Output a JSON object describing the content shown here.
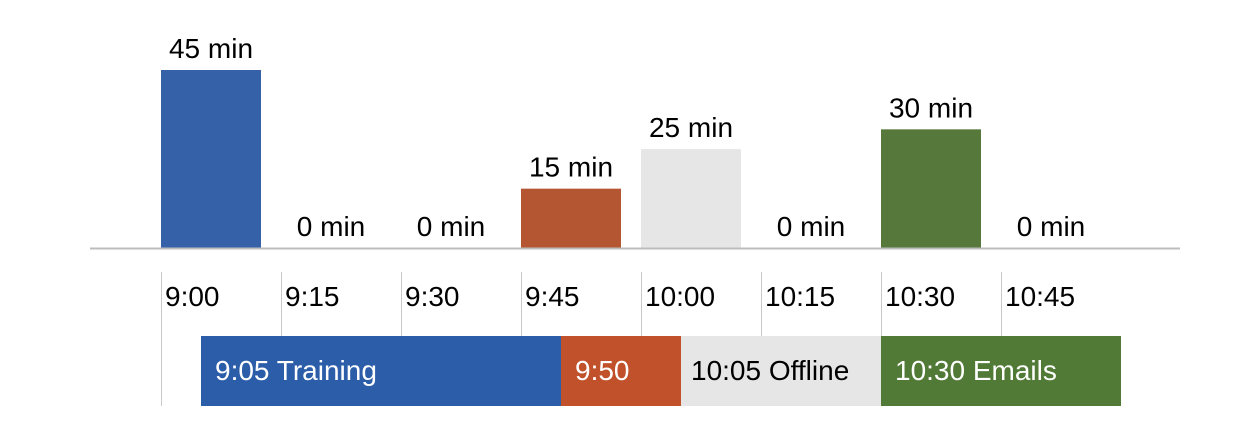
{
  "chart_data": {
    "type": "bar",
    "categories": [
      "9:00",
      "9:15",
      "9:30",
      "9:45",
      "10:00",
      "10:15",
      "10:30",
      "10:45"
    ],
    "values": [
      45,
      0,
      0,
      15,
      25,
      0,
      30,
      0
    ],
    "value_labels": [
      "45 min",
      "0 min",
      "0 min",
      "15 min",
      "25 min",
      "0 min",
      "30 min",
      "0 min"
    ],
    "bar_colors": [
      "#3561a9",
      "#3561a9",
      "#3561a9",
      "#b45631",
      "#e6e6e6",
      "#e6e6e6",
      "#57783b",
      "#57783b"
    ],
    "ylim": [
      0,
      45
    ],
    "grid": false,
    "legend": "none"
  },
  "timeline": {
    "ticks": [
      "9:00",
      "9:15",
      "9:30",
      "9:45",
      "10:00",
      "10:15",
      "10:30",
      "10:45"
    ],
    "segments": [
      {
        "label": "9:05 Training",
        "start_min": 5,
        "end_min": 50,
        "color": "#2b5da9",
        "text_color": "#ffffff"
      },
      {
        "label": "9:50",
        "start_min": 50,
        "end_min": 65,
        "color": "#c0512b",
        "text_color": "#ffffff"
      },
      {
        "label": "10:05 Offline",
        "start_min": 65,
        "end_min": 90,
        "color": "#e6e6e6",
        "text_color": "#000000"
      },
      {
        "label": "10:30 Emails",
        "start_min": 90,
        "end_min": 120,
        "color": "#507a36",
        "text_color": "#ffffff"
      }
    ]
  }
}
